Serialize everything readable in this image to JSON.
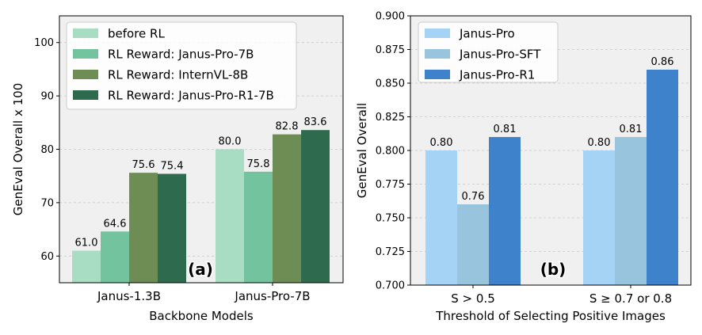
{
  "chart_data": [
    {
      "type": "bar",
      "panel_label": "(a)",
      "title": "",
      "xlabel": "Backbone Models",
      "ylabel": "GenEval Overall x 100",
      "ylim": [
        55,
        105
      ],
      "yticks": [
        60,
        70,
        80,
        90,
        100
      ],
      "grid": true,
      "legend_position": "top-left",
      "categories": [
        "Janus-1.3B",
        "Janus-Pro-7B"
      ],
      "series": [
        {
          "name": "before RL",
          "color": "#a8dcc3",
          "values": [
            61.0,
            80.0
          ],
          "labels": [
            "61.0",
            "80.0"
          ]
        },
        {
          "name": "RL Reward: Janus-Pro-7B",
          "color": "#72c39e",
          "values": [
            64.6,
            75.8
          ],
          "labels": [
            "64.6",
            "75.8"
          ]
        },
        {
          "name": "RL Reward: InternVL-8B",
          "color": "#6e8d55",
          "values": [
            75.6,
            82.8
          ],
          "labels": [
            "75.6",
            "82.8"
          ]
        },
        {
          "name": "RL Reward: Janus-Pro-R1-7B",
          "color": "#2e6b4e",
          "values": [
            75.4,
            83.6
          ],
          "labels": [
            "75.4",
            "83.6"
          ]
        }
      ]
    },
    {
      "type": "bar",
      "panel_label": "(b)",
      "title": "",
      "xlabel": "Threshold of Selecting Positive Images",
      "ylabel": "GenEval Overall",
      "ylim": [
        0.7,
        0.9
      ],
      "yticks": [
        "0.700",
        "0.725",
        "0.750",
        "0.775",
        "0.800",
        "0.825",
        "0.850",
        "0.875",
        "0.900"
      ],
      "grid": true,
      "legend_position": "top-left",
      "categories": [
        "S > 0.5",
        "S ≥ 0.7 or 0.8"
      ],
      "series": [
        {
          "name": "Janus-Pro",
          "color": "#a5d3f6",
          "values": [
            0.8,
            0.8
          ],
          "labels": [
            "0.80",
            "0.80"
          ]
        },
        {
          "name": "Janus-Pro-SFT",
          "color": "#99c4de",
          "values": [
            0.76,
            0.81
          ],
          "labels": [
            "0.76",
            "0.81"
          ]
        },
        {
          "name": "Janus-Pro-R1",
          "color": "#3f82cc",
          "values": [
            0.81,
            0.86
          ],
          "labels": [
            "0.81",
            "0.86"
          ]
        }
      ]
    }
  ]
}
